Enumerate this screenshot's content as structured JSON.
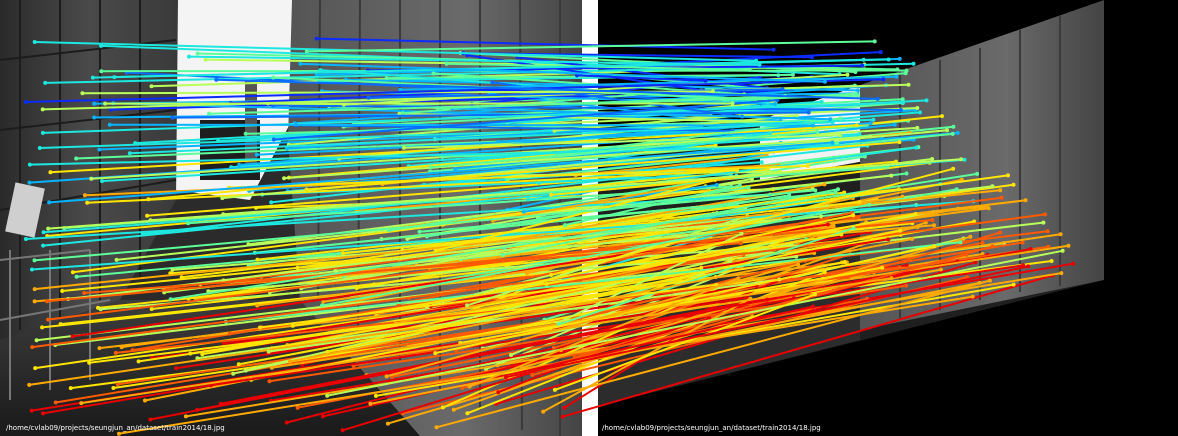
{
  "left_panel": {
    "caption": "/home/cvlab09/projects/seungjun_an/dataset/train2014/18.jpg"
  },
  "right_panel": {
    "caption": "/home/cvlab09/projects/seungjun_an/dataset/train2014/18.jpg"
  },
  "match_lines": {
    "count": 320,
    "palette": [
      "#0b2bff",
      "#0a6cff",
      "#08b4ff",
      "#1de8e0",
      "#5cff9a",
      "#b8ff5a",
      "#ffe600",
      "#ffaa00",
      "#ff5a00",
      "#e80000"
    ]
  }
}
